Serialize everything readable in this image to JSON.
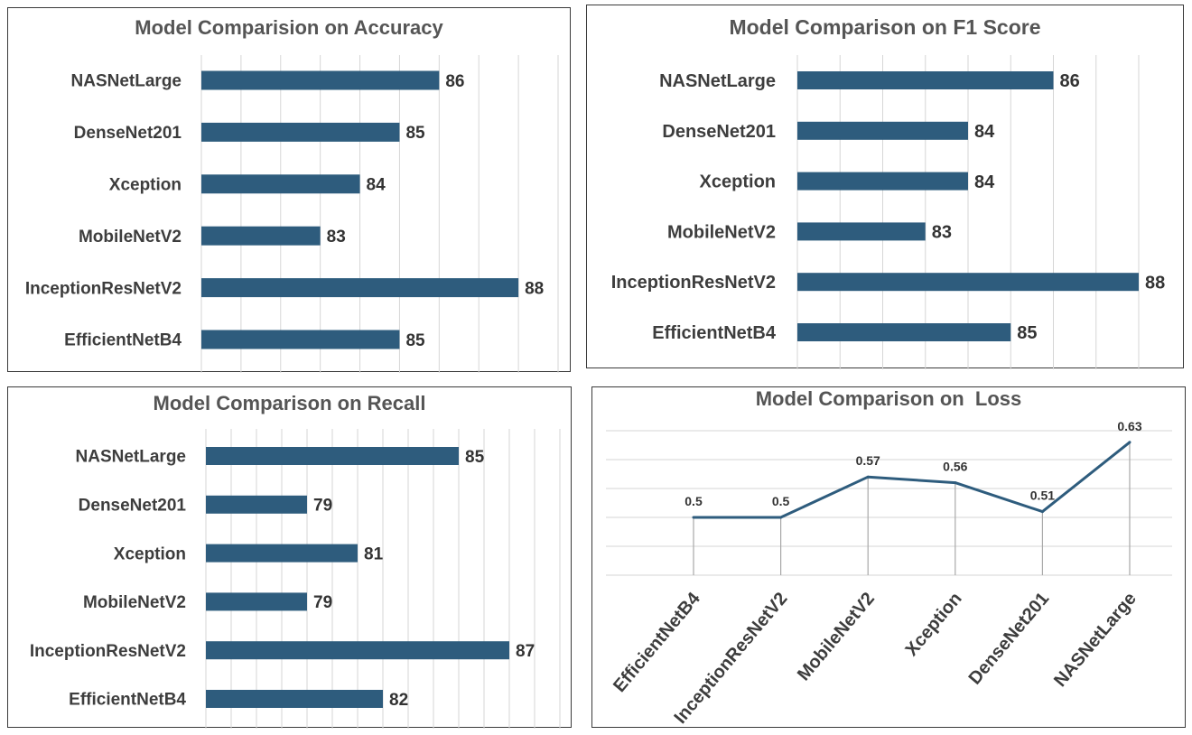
{
  "charts": {
    "accuracy": {
      "title": "Model Comparision on Accuracy"
    },
    "f1": {
      "title": "Model Comparison on F1 Score"
    },
    "recall": {
      "title": "Model Comparison on Recall"
    },
    "loss": {
      "title": "Model Comparison on  Loss"
    }
  },
  "colors": {
    "bar": "#2e5c7d",
    "line": "#2e5c7d",
    "grid": "#d6d6d6",
    "frame": "#3a3a3a",
    "title": "#555555"
  },
  "chart_data": [
    {
      "type": "bar",
      "orientation": "horizontal",
      "title": "Model Comparision on Accuracy",
      "categories": [
        "NASNetLarge",
        "DenseNet201",
        "Xception",
        "MobileNetV2",
        "InceptionResNetV2",
        "EfficientNetB4"
      ],
      "values": [
        86,
        85,
        84,
        83,
        88,
        85
      ],
      "xlim": [
        80,
        89
      ],
      "grid": true,
      "data_labels": true
    },
    {
      "type": "bar",
      "orientation": "horizontal",
      "title": "Model Comparison on F1 Score",
      "categories": [
        "NASNetLarge",
        "DenseNet201",
        "Xception",
        "MobileNetV2",
        "InceptionResNetV2",
        "EfficientNetB4"
      ],
      "values": [
        86,
        84,
        84,
        83,
        88,
        85
      ],
      "xlim": [
        80,
        88
      ],
      "grid": true,
      "data_labels": true
    },
    {
      "type": "bar",
      "orientation": "horizontal",
      "title": "Model Comparison on Recall",
      "categories": [
        "NASNetLarge",
        "DenseNet201",
        "Xception",
        "MobileNetV2",
        "InceptionResNetV2",
        "EfficientNetB4"
      ],
      "values": [
        85,
        79,
        81,
        79,
        87,
        82
      ],
      "xlim": [
        75,
        89
      ],
      "grid": true,
      "data_labels": true
    },
    {
      "type": "line",
      "title": "Model Comparison on  Loss",
      "categories": [
        "EfficientNetB4",
        "InceptionResNetV2",
        "MobileNetV2",
        "Xception",
        "DenseNet201",
        "NASNetLarge"
      ],
      "values": [
        0.5,
        0.5,
        0.57,
        0.56,
        0.51,
        0.63
      ],
      "ylim": [
        0.4,
        0.65
      ],
      "grid": true,
      "drop_lines": true,
      "data_labels": true
    }
  ]
}
